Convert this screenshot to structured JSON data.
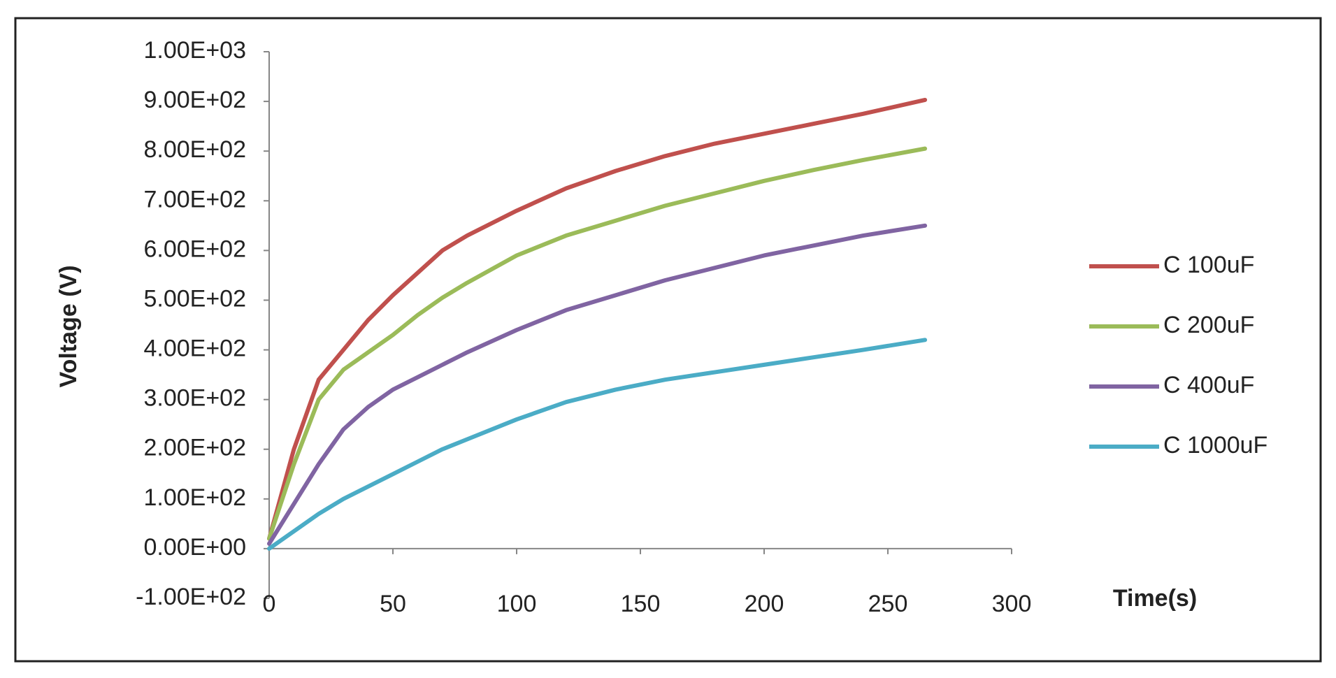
{
  "chart_data": {
    "type": "line",
    "x_label": "Time(s)",
    "y_label": "Voltage (V)",
    "x": [
      0,
      10,
      20,
      30,
      40,
      50,
      60,
      70,
      80,
      100,
      120,
      140,
      160,
      180,
      200,
      220,
      240,
      265
    ],
    "series": [
      {
        "name": "C 100uF",
        "color": "#c0504d",
        "values": [
          20,
          200,
          340,
          400,
          460,
          510,
          555,
          600,
          630,
          680,
          725,
          760,
          790,
          815,
          835,
          855,
          875,
          903
        ]
      },
      {
        "name": "C 200uF",
        "color": "#9bbb59",
        "values": [
          20,
          170,
          300,
          360,
          395,
          430,
          470,
          505,
          535,
          590,
          630,
          660,
          690,
          715,
          740,
          762,
          782,
          805
        ]
      },
      {
        "name": "C 400uF",
        "color": "#8064a2",
        "values": [
          10,
          90,
          170,
          240,
          285,
          320,
          345,
          370,
          395,
          440,
          480,
          510,
          540,
          565,
          590,
          610,
          630,
          650
        ]
      },
      {
        "name": "C 1000uF",
        "color": "#4bacc6",
        "values": [
          0,
          35,
          70,
          100,
          125,
          150,
          175,
          200,
          220,
          260,
          295,
          320,
          340,
          355,
          370,
          385,
          400,
          420
        ]
      }
    ],
    "xlim": [
      0,
      300
    ],
    "xticks": [
      0,
      50,
      100,
      150,
      200,
      250,
      300
    ],
    "ylim": [
      -100,
      1000
    ],
    "yticks": [
      {
        "value": -100,
        "label": "-1.00E+02"
      },
      {
        "value": 0,
        "label": "0.00E+00"
      },
      {
        "value": 100,
        "label": "1.00E+02"
      },
      {
        "value": 200,
        "label": "2.00E+02"
      },
      {
        "value": 300,
        "label": "3.00E+02"
      },
      {
        "value": 400,
        "label": "4.00E+02"
      },
      {
        "value": 500,
        "label": "5.00E+02"
      },
      {
        "value": 600,
        "label": "6.00E+02"
      },
      {
        "value": 700,
        "label": "7.00E+02"
      },
      {
        "value": 800,
        "label": "8.00E+02"
      },
      {
        "value": 900,
        "label": "9.00E+02"
      },
      {
        "value": 1000,
        "label": "1.00E+03"
      }
    ],
    "grid": false,
    "legend": "right"
  }
}
